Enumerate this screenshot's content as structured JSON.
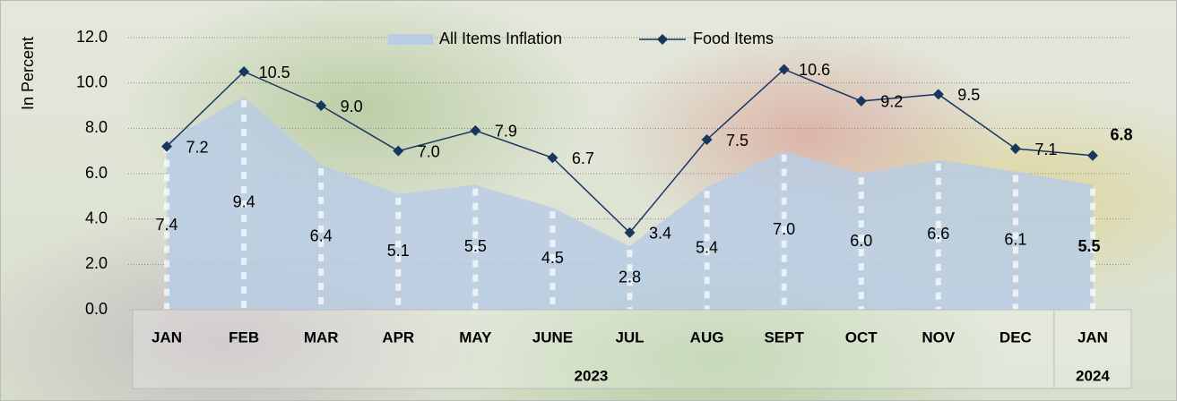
{
  "chart_data": {
    "type": "area-line",
    "y_label": "In Percent",
    "categories": [
      "JAN",
      "FEB",
      "MAR",
      "APR",
      "MAY",
      "JUNE",
      "JUL",
      "AUG",
      "SEPT",
      "OCT",
      "NOV",
      "DEC",
      "JAN"
    ],
    "groups": [
      {
        "label": "2023",
        "count": 12
      },
      {
        "label": "2024",
        "count": 1
      }
    ],
    "series": [
      {
        "name": "All Items Inflation",
        "kind": "area",
        "color": "#b8cce4",
        "values": [
          7.4,
          9.4,
          6.4,
          5.1,
          5.5,
          4.5,
          2.8,
          5.4,
          7.0,
          6.0,
          6.6,
          6.1,
          5.5
        ],
        "value_labels": [
          "7.4",
          "9.4",
          "6.4",
          "5.1",
          "5.5",
          "4.5",
          "2.8",
          "5.4",
          "7.0",
          "6.0",
          "6.6",
          "6.1",
          "5.5"
        ]
      },
      {
        "name": "Food Items",
        "kind": "line",
        "color": "#17375e",
        "values": [
          7.2,
          10.5,
          9.0,
          7.0,
          7.9,
          6.7,
          3.4,
          7.5,
          10.6,
          9.2,
          9.5,
          7.1,
          6.8
        ],
        "value_labels": [
          "7.2",
          "10.5",
          "9.0",
          "7.0",
          "7.9",
          "6.7",
          "3.4",
          "7.5",
          "10.6",
          "9.2",
          "9.5",
          "7.1",
          "6.8"
        ]
      }
    ],
    "ylim": [
      0,
      12
    ],
    "yticks": [
      {
        "value": 0,
        "label": "0.0"
      },
      {
        "value": 2,
        "label": "2.0"
      },
      {
        "value": 4,
        "label": "4.0"
      },
      {
        "value": 6,
        "label": "6.0"
      },
      {
        "value": 8,
        "label": "8.0"
      },
      {
        "value": 10,
        "label": "10.0"
      },
      {
        "value": 12,
        "label": "12.0"
      }
    ],
    "grid": true,
    "legend": "top"
  }
}
